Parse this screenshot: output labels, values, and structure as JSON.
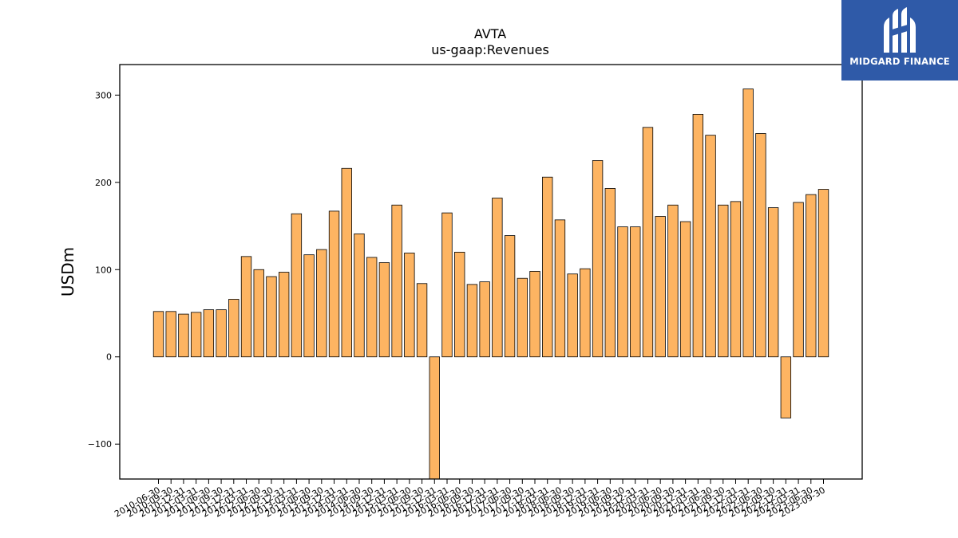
{
  "logo": {
    "text": "MIDGARD FINANCE",
    "icon": "midgard-m-icon",
    "background": "#2f5aa8"
  },
  "colors": {
    "bar_fill": "#fdb462",
    "bar_stroke": "#000000",
    "axis": "#000000"
  },
  "chart_data": {
    "type": "bar",
    "title": "AVTA",
    "subtitle": "us-gaap:Revenues",
    "xlabel": "",
    "ylabel": "USDm",
    "ylim": [
      -140,
      335
    ],
    "yticks": [
      -100,
      0,
      100,
      200,
      300
    ],
    "grid": false,
    "categories": [
      "2010-06-30",
      "2010-09-30",
      "2010-12-31",
      "2011-03-31",
      "2011-06-30",
      "2011-09-30",
      "2011-12-31",
      "2012-03-31",
      "2012-06-30",
      "2012-09-30",
      "2012-12-31",
      "2013-03-31",
      "2013-06-30",
      "2013-09-30",
      "2013-12-31",
      "2014-03-31",
      "2014-06-30",
      "2014-09-30",
      "2014-12-31",
      "2015-03-31",
      "2015-06-30",
      "2015-09-30",
      "2015-12-31",
      "2016-03-31",
      "2016-06-30",
      "2016-09-30",
      "2016-12-31",
      "2017-03-31",
      "2017-06-30",
      "2017-09-30",
      "2017-12-31",
      "2018-03-31",
      "2018-06-30",
      "2018-09-30",
      "2018-12-31",
      "2019-03-31",
      "2019-06-30",
      "2019-09-30",
      "2019-12-31",
      "2020-03-31",
      "2020-06-30",
      "2020-09-30",
      "2020-12-31",
      "2021-03-31",
      "2021-06-30",
      "2021-09-30",
      "2021-12-31",
      "2022-03-31",
      "2022-06-30",
      "2022-09-30",
      "2022-12-31",
      "2023-03-31",
      "2023-06-30",
      "2023-09-30"
    ],
    "series": [
      {
        "values": [
          52,
          52,
          49,
          51,
          54,
          54,
          66,
          115,
          100,
          92,
          97,
          164,
          117,
          123,
          167,
          216,
          141,
          114,
          108,
          174,
          119,
          84,
          -140,
          165,
          120,
          83,
          86,
          182,
          139,
          90,
          98,
          206,
          157,
          95,
          101,
          225,
          193,
          149,
          149,
          263,
          161,
          174,
          155,
          278,
          254,
          174,
          178,
          307,
          256,
          171,
          -70,
          177,
          186,
          192
        ]
      }
    ]
  }
}
